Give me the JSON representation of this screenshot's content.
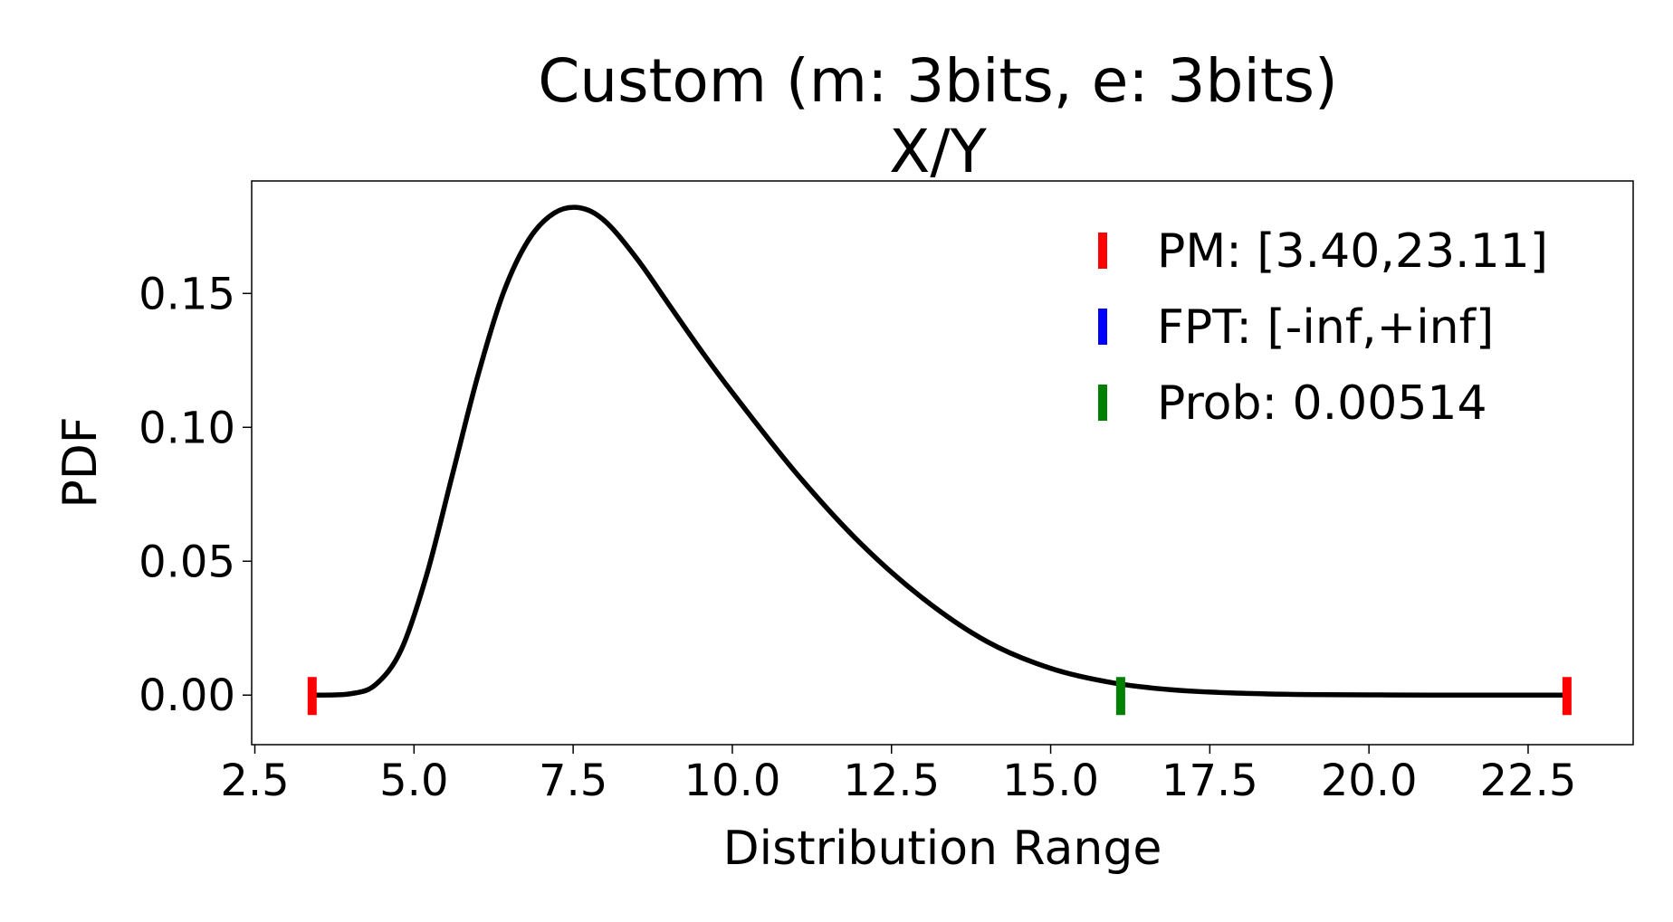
{
  "chart_data": {
    "type": "line",
    "title": "Custom (m: 3bits, e: 3bits)",
    "subtitle": "X/Y",
    "xlabel": "Distribution Range",
    "ylabel": "PDF",
    "xlim": [
      2.45,
      24.15
    ],
    "ylim": [
      -0.0185,
      0.192
    ],
    "xticks": [
      2.5,
      5.0,
      7.5,
      10.0,
      12.5,
      15.0,
      17.5,
      20.0,
      22.5
    ],
    "xtick_labels": [
      "2.5",
      "5.0",
      "7.5",
      "10.0",
      "12.5",
      "15.0",
      "17.5",
      "20.0",
      "22.5"
    ],
    "yticks": [
      0.0,
      0.05,
      0.1,
      0.15
    ],
    "ytick_labels": [
      "0.00",
      "0.05",
      "0.10",
      "0.15"
    ],
    "grid": false,
    "legend_position": "top-right",
    "series": [
      {
        "color": "#000000",
        "x": [
          3.4,
          4.0,
          4.4,
          4.8,
          5.2,
          5.6,
          6.0,
          6.4,
          6.8,
          7.2,
          7.6,
          8.0,
          8.5,
          9.0,
          9.5,
          10.0,
          11.0,
          12.0,
          13.0,
          14.0,
          15.0,
          16.0,
          17.0,
          18.0,
          19.0,
          20.0,
          21.0,
          22.0,
          23.11
        ],
        "y": [
          0.0,
          0.0005,
          0.004,
          0.017,
          0.045,
          0.082,
          0.119,
          0.15,
          0.17,
          0.18,
          0.182,
          0.177,
          0.163,
          0.146,
          0.129,
          0.113,
          0.083,
          0.057,
          0.036,
          0.02,
          0.01,
          0.0045,
          0.0018,
          0.0007,
          0.0002,
          0.0001,
          0.0,
          0.0,
          0.0
        ]
      }
    ],
    "markers": [
      {
        "name": "pm-lower",
        "x": 3.4,
        "color": "#ff0000"
      },
      {
        "name": "pm-upper",
        "x": 23.11,
        "color": "#ff0000"
      },
      {
        "name": "prob",
        "x": 16.1,
        "color": "#008000"
      }
    ],
    "legend": [
      {
        "label": "PM: [3.40,23.11]",
        "color": "#ff0000"
      },
      {
        "label": "FPT: [-inf,+inf]",
        "color": "#0000ff"
      },
      {
        "label": "Prob: 0.00514",
        "color": "#008000"
      }
    ]
  }
}
